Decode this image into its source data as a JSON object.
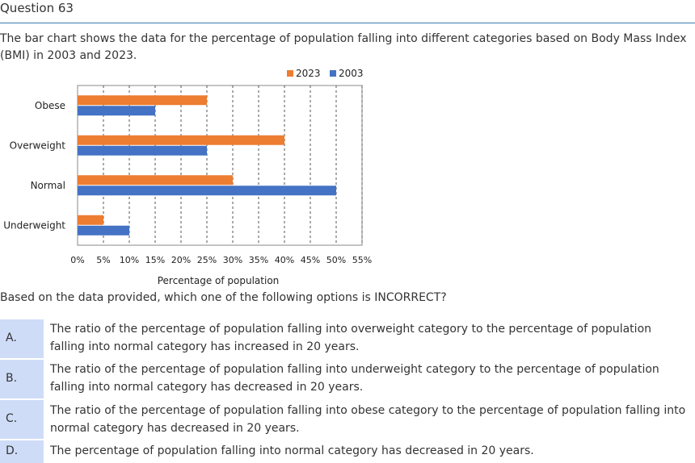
{
  "question": {
    "title": "Question 63",
    "intro": "The bar chart shows the data for the percentage of population falling into different categories based on Body Mass Index (BMI) in 2003 and 2023.",
    "prompt": "Based on the data provided, which one of the following options is INCORRECT?"
  },
  "options": [
    {
      "label": "A.",
      "text": "The ratio of the percentage of population falling into overweight category to the percentage of population falling into normal category has increased in 20 years."
    },
    {
      "label": "B.",
      "text": "The ratio of the percentage of population falling into underweight category to the percentage of population falling into normal category has decreased in 20 years."
    },
    {
      "label": "C.",
      "text": "The ratio of the percentage of population falling into obese category to the percentage of population falling into normal category has decreased in 20 years."
    },
    {
      "label": "D.",
      "text": "The percentage of population falling into normal category has decreased in 20 years."
    }
  ],
  "chart_data": {
    "type": "bar",
    "orientation": "horizontal",
    "categories": [
      "Obese",
      "Overweight",
      "Normal",
      "Underweight"
    ],
    "series": [
      {
        "name": "2023",
        "color": "#ED7D31",
        "values": [
          25,
          40,
          30,
          5
        ]
      },
      {
        "name": "2003",
        "color": "#4472C4",
        "values": [
          15,
          25,
          50,
          10
        ]
      }
    ],
    "xlabel": "Percentage of population",
    "ylabel": "",
    "xlim": [
      0,
      55
    ],
    "xticks": [
      "0%",
      "5%",
      "10%",
      "15%",
      "20%",
      "25%",
      "30%",
      "35%",
      "40%",
      "45%",
      "50%",
      "55%"
    ],
    "grid": "vertical dashed",
    "legend": "top-right"
  }
}
